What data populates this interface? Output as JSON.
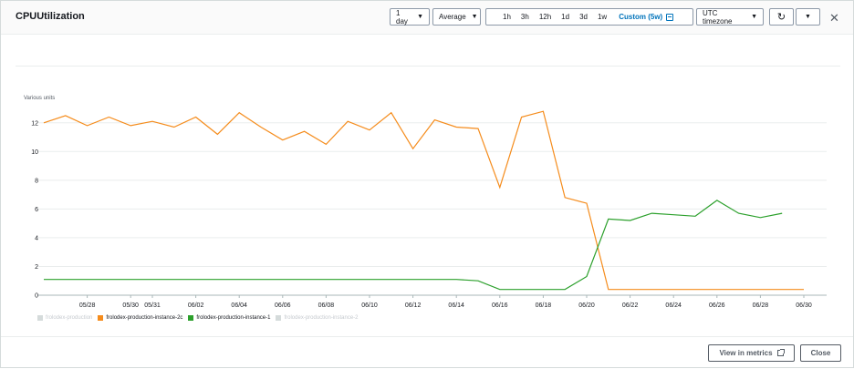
{
  "header": {
    "title": "CPUUtilization",
    "period": "1 day",
    "statistic": "Average",
    "ranges": [
      "1h",
      "3h",
      "12h",
      "1d",
      "3d",
      "1w"
    ],
    "custom_range": "Custom (5w)",
    "timezone": "UTC timezone"
  },
  "footer": {
    "view_metrics_label": "View in metrics",
    "close_label": "Close"
  },
  "colors": {
    "series_orange": "#f58c1c",
    "series_green": "#2ca02c",
    "muted": "#d5dbdb",
    "accent": "#0073bb"
  },
  "chart_data": {
    "type": "line",
    "ylabel": "Various units",
    "ylim": [
      0,
      13
    ],
    "yticks": [
      0,
      2,
      4,
      6,
      8,
      10,
      12
    ],
    "xticks": [
      "05/28",
      "05/30",
      "05/31",
      "06/02",
      "06/04",
      "06/06",
      "06/08",
      "06/10",
      "06/12",
      "06/14",
      "06/16",
      "06/18",
      "06/20",
      "06/22",
      "06/24",
      "06/26",
      "06/28",
      "06/30"
    ],
    "x": [
      "05/26",
      "05/27",
      "05/28",
      "05/29",
      "05/30",
      "05/31",
      "06/01",
      "06/02",
      "06/03",
      "06/04",
      "06/05",
      "06/06",
      "06/07",
      "06/08",
      "06/09",
      "06/10",
      "06/11",
      "06/12",
      "06/13",
      "06/14",
      "06/15",
      "06/16",
      "06/17",
      "06/18",
      "06/19",
      "06/20",
      "06/21",
      "06/22",
      "06/23",
      "06/24",
      "06/25",
      "06/26",
      "06/27",
      "06/28",
      "06/29",
      "06/30"
    ],
    "series": [
      {
        "name": "frolodex-production-instance-2c",
        "values": [
          12.0,
          12.5,
          11.8,
          12.4,
          11.8,
          12.1,
          11.7,
          12.4,
          11.2,
          12.7,
          11.7,
          10.8,
          11.4,
          10.5,
          12.1,
          11.5,
          12.7,
          10.2,
          12.2,
          11.7,
          11.6,
          7.5,
          12.4,
          12.8,
          6.8,
          6.4,
          0.4,
          0.4,
          0.4,
          0.4,
          0.4,
          0.4,
          0.4,
          0.4,
          0.4,
          0.4
        ]
      },
      {
        "name": "frolodex-production-instance-1",
        "values": [
          1.1,
          1.1,
          1.1,
          1.1,
          1.1,
          1.1,
          1.1,
          1.1,
          1.1,
          1.1,
          1.1,
          1.1,
          1.1,
          1.1,
          1.1,
          1.1,
          1.1,
          1.1,
          1.1,
          1.1,
          1.0,
          0.4,
          0.4,
          0.4,
          0.4,
          1.3,
          5.3,
          5.2,
          5.7,
          5.6,
          5.5,
          6.6,
          5.7,
          5.4,
          5.7,
          null
        ]
      }
    ],
    "legend": [
      {
        "name": "frolodex-production",
        "active": false
      },
      {
        "name": "frolodex-production-instance-2c",
        "active": true
      },
      {
        "name": "frolodex-production-instance-1",
        "active": true
      },
      {
        "name": "frolodex-production-instance-2",
        "active": false
      }
    ]
  }
}
